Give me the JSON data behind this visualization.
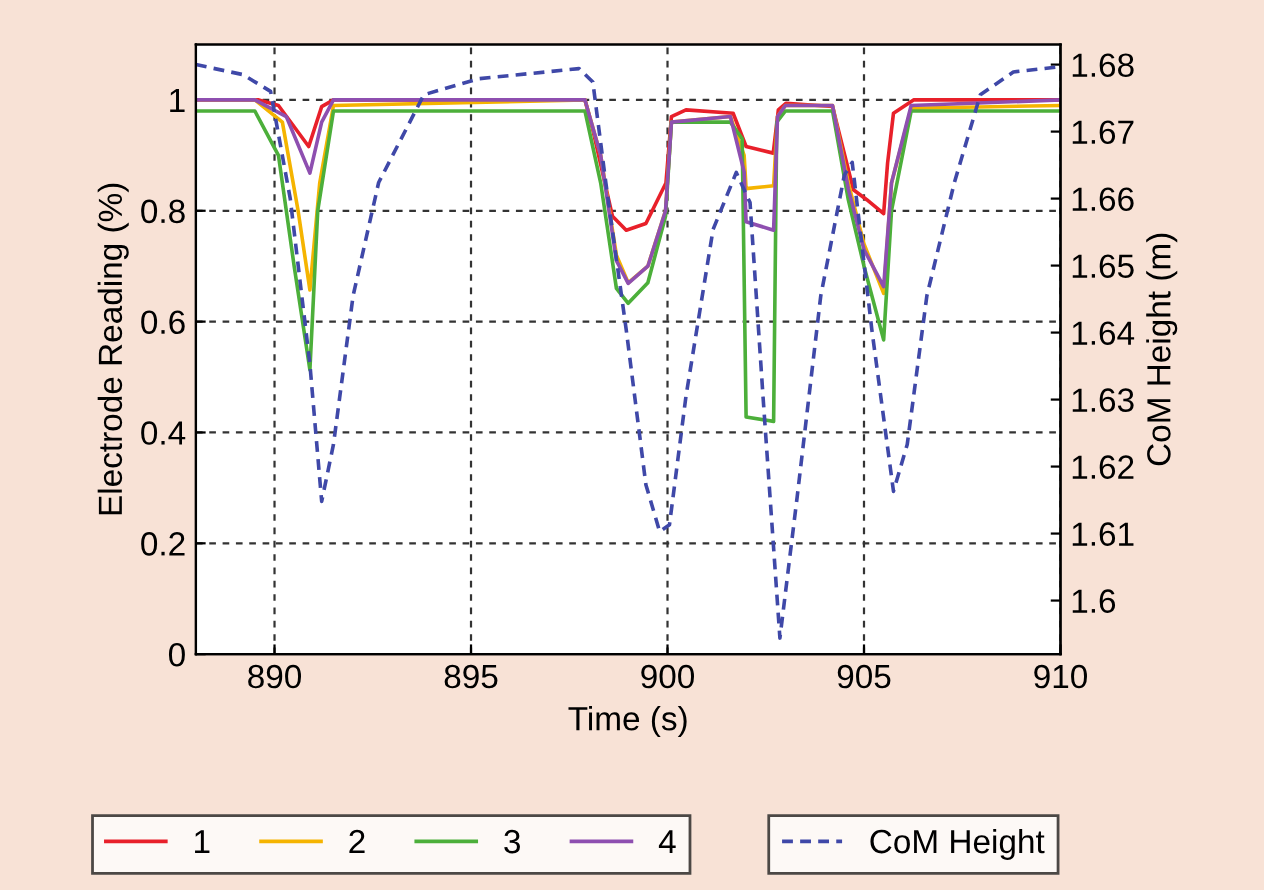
{
  "chart_data": {
    "type": "line",
    "xlabel": "Time (s)",
    "ylabel": "Electrode Reading (%)",
    "y2label": "CoM Height (m)",
    "xlim": [
      888,
      910
    ],
    "xticks": [
      890,
      895,
      900,
      905,
      910
    ],
    "ylim": [
      0,
      1.1
    ],
    "yticks": [
      0,
      0.2,
      0.4,
      0.6,
      0.8,
      1
    ],
    "y2lim": [
      1.592,
      1.683
    ],
    "y2ticks": [
      1.6,
      1.61,
      1.62,
      1.63,
      1.64,
      1.65,
      1.66,
      1.67,
      1.68
    ],
    "grid": true,
    "legend": "bottom",
    "line_style": "solid",
    "series": [
      {
        "name": "1",
        "color": "#e8202a",
        "x": [
          888,
          889.6,
          890.1,
          890.87,
          891.2,
          891.5,
          897.9,
          898.1,
          898.6,
          898.95,
          899.45,
          899.96,
          900.1,
          900.47,
          901.67,
          902.0,
          902.69,
          902.82,
          903.02,
          904.2,
          904.73,
          905.07,
          905.5,
          905.6,
          905.75,
          906.26,
          910
        ],
        "values": [
          1,
          1,
          0.99,
          0.916,
          0.988,
          1,
          1,
          0.946,
          0.79,
          0.765,
          0.777,
          0.85,
          0.97,
          0.982,
          0.976,
          0.916,
          0.904,
          0.982,
          0.994,
          0.988,
          0.838,
          0.82,
          0.795,
          0.886,
          0.976,
          1,
          1
        ]
      },
      {
        "name": "2",
        "color": "#f5b400",
        "x": [
          888,
          889.5,
          890.2,
          890.6,
          890.9,
          891.15,
          891.5,
          897.9,
          898.3,
          898.7,
          899.0,
          899.5,
          899.95,
          900.1,
          901.6,
          901.95,
          902.0,
          902.7,
          902.8,
          903.0,
          904.2,
          904.6,
          905.0,
          905.5,
          905.7,
          906.2,
          910
        ],
        "values": [
          1,
          1,
          0.96,
          0.8,
          0.657,
          0.85,
          0.99,
          1,
          0.9,
          0.72,
          0.67,
          0.7,
          0.8,
          0.96,
          0.97,
          0.9,
          0.84,
          0.845,
          0.97,
          0.99,
          0.99,
          0.85,
          0.74,
          0.651,
          0.85,
          0.985,
          0.99
        ]
      },
      {
        "name": "3",
        "color": "#4caf3a",
        "x": [
          888,
          889.5,
          890.1,
          890.5,
          890.9,
          891.1,
          891.5,
          897.9,
          898.3,
          898.7,
          899.0,
          899.5,
          899.95,
          900.1,
          901.6,
          901.9,
          902.0,
          902.7,
          902.78,
          903.0,
          904.2,
          904.6,
          905.0,
          905.5,
          905.7,
          906.2,
          910
        ],
        "values": [
          0.98,
          0.98,
          0.9,
          0.7,
          0.513,
          0.8,
          0.98,
          0.98,
          0.85,
          0.66,
          0.633,
          0.67,
          0.79,
          0.96,
          0.96,
          0.93,
          0.428,
          0.42,
          0.96,
          0.98,
          0.98,
          0.82,
          0.7,
          0.567,
          0.8,
          0.98,
          0.98
        ]
      },
      {
        "name": "4",
        "color": "#8e4fb0",
        "x": [
          888,
          889.5,
          890.3,
          890.9,
          891.2,
          891.5,
          897.9,
          898.3,
          898.7,
          899.0,
          899.5,
          899.95,
          900.1,
          901.6,
          901.95,
          902.0,
          902.7,
          902.8,
          903.0,
          904.2,
          904.6,
          905.0,
          905.5,
          905.7,
          906.2,
          910
        ],
        "values": [
          1,
          1,
          0.97,
          0.868,
          0.96,
          1,
          1,
          0.9,
          0.71,
          0.669,
          0.7,
          0.8,
          0.96,
          0.97,
          0.87,
          0.78,
          0.765,
          0.97,
          0.99,
          0.99,
          0.84,
          0.73,
          0.663,
          0.85,
          0.99,
          1
        ]
      },
      {
        "name": "CoM Height",
        "color": "#3f48a8",
        "axis": "y2",
        "line_style": "dashed",
        "x": [
          888,
          889.2,
          889.9,
          890.4,
          890.9,
          891.2,
          891.5,
          892.0,
          892.65,
          893.8,
          895.2,
          897.75,
          898.1,
          898.43,
          898.95,
          899.45,
          899.8,
          900.05,
          900.47,
          901.16,
          901.75,
          902.1,
          902.43,
          902.86,
          903.3,
          903.9,
          904.5,
          904.7,
          905.2,
          905.75,
          906.1,
          906.6,
          907.3,
          907.96,
          908.8,
          910
        ],
        "values": [
          1.68,
          1.6785,
          1.676,
          1.66,
          1.6353,
          1.6148,
          1.6233,
          1.6455,
          1.6624,
          1.6755,
          1.6779,
          1.6794,
          1.6774,
          1.6624,
          1.6404,
          1.6173,
          1.6103,
          1.6113,
          1.6305,
          1.6554,
          1.6639,
          1.6594,
          1.6305,
          1.5944,
          1.6155,
          1.6455,
          1.6635,
          1.6654,
          1.6404,
          1.6163,
          1.6233,
          1.6455,
          1.6624,
          1.6755,
          1.6789,
          1.6797
        ]
      }
    ]
  }
}
